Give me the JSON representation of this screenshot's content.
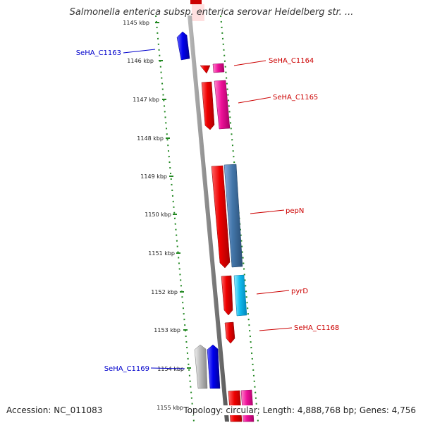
{
  "title": "Salmonella enterica subsp. enterica serovar Heidelberg str. ...",
  "scale_ticks": [
    "1145 kbp",
    "1146 kbp",
    "1147 kbp",
    "1148 kbp",
    "1149 kbp",
    "1150 kbp",
    "1151 kbp",
    "1152 kbp",
    "1153 kbp",
    "1154 kbp",
    "1155 kbp"
  ],
  "gene_labels": {
    "c1163": "SeHA_C1163",
    "c1164": "SeHA_C1164",
    "c1165": "SeHA_C1165",
    "pepN": "pepN",
    "pyrD": "pyrD",
    "c1168": "SeHA_C1168",
    "c1169": "SeHA_C1169"
  },
  "colors": {
    "forward_gene": "#ee0000",
    "forward_alt": "#ee1199",
    "reverse_gene": "#0000ee",
    "pepN_alt": "#4477aa",
    "pyrD_alt": "#11bbee",
    "grey_feature": "#bbbbbb",
    "backbone": "#888888",
    "dotted_track": "#228822"
  },
  "footer": {
    "accession": "Accession: NC_011083",
    "stats": "Topology: circular; Length: 4,888,768 bp; Genes: 4,756"
  }
}
